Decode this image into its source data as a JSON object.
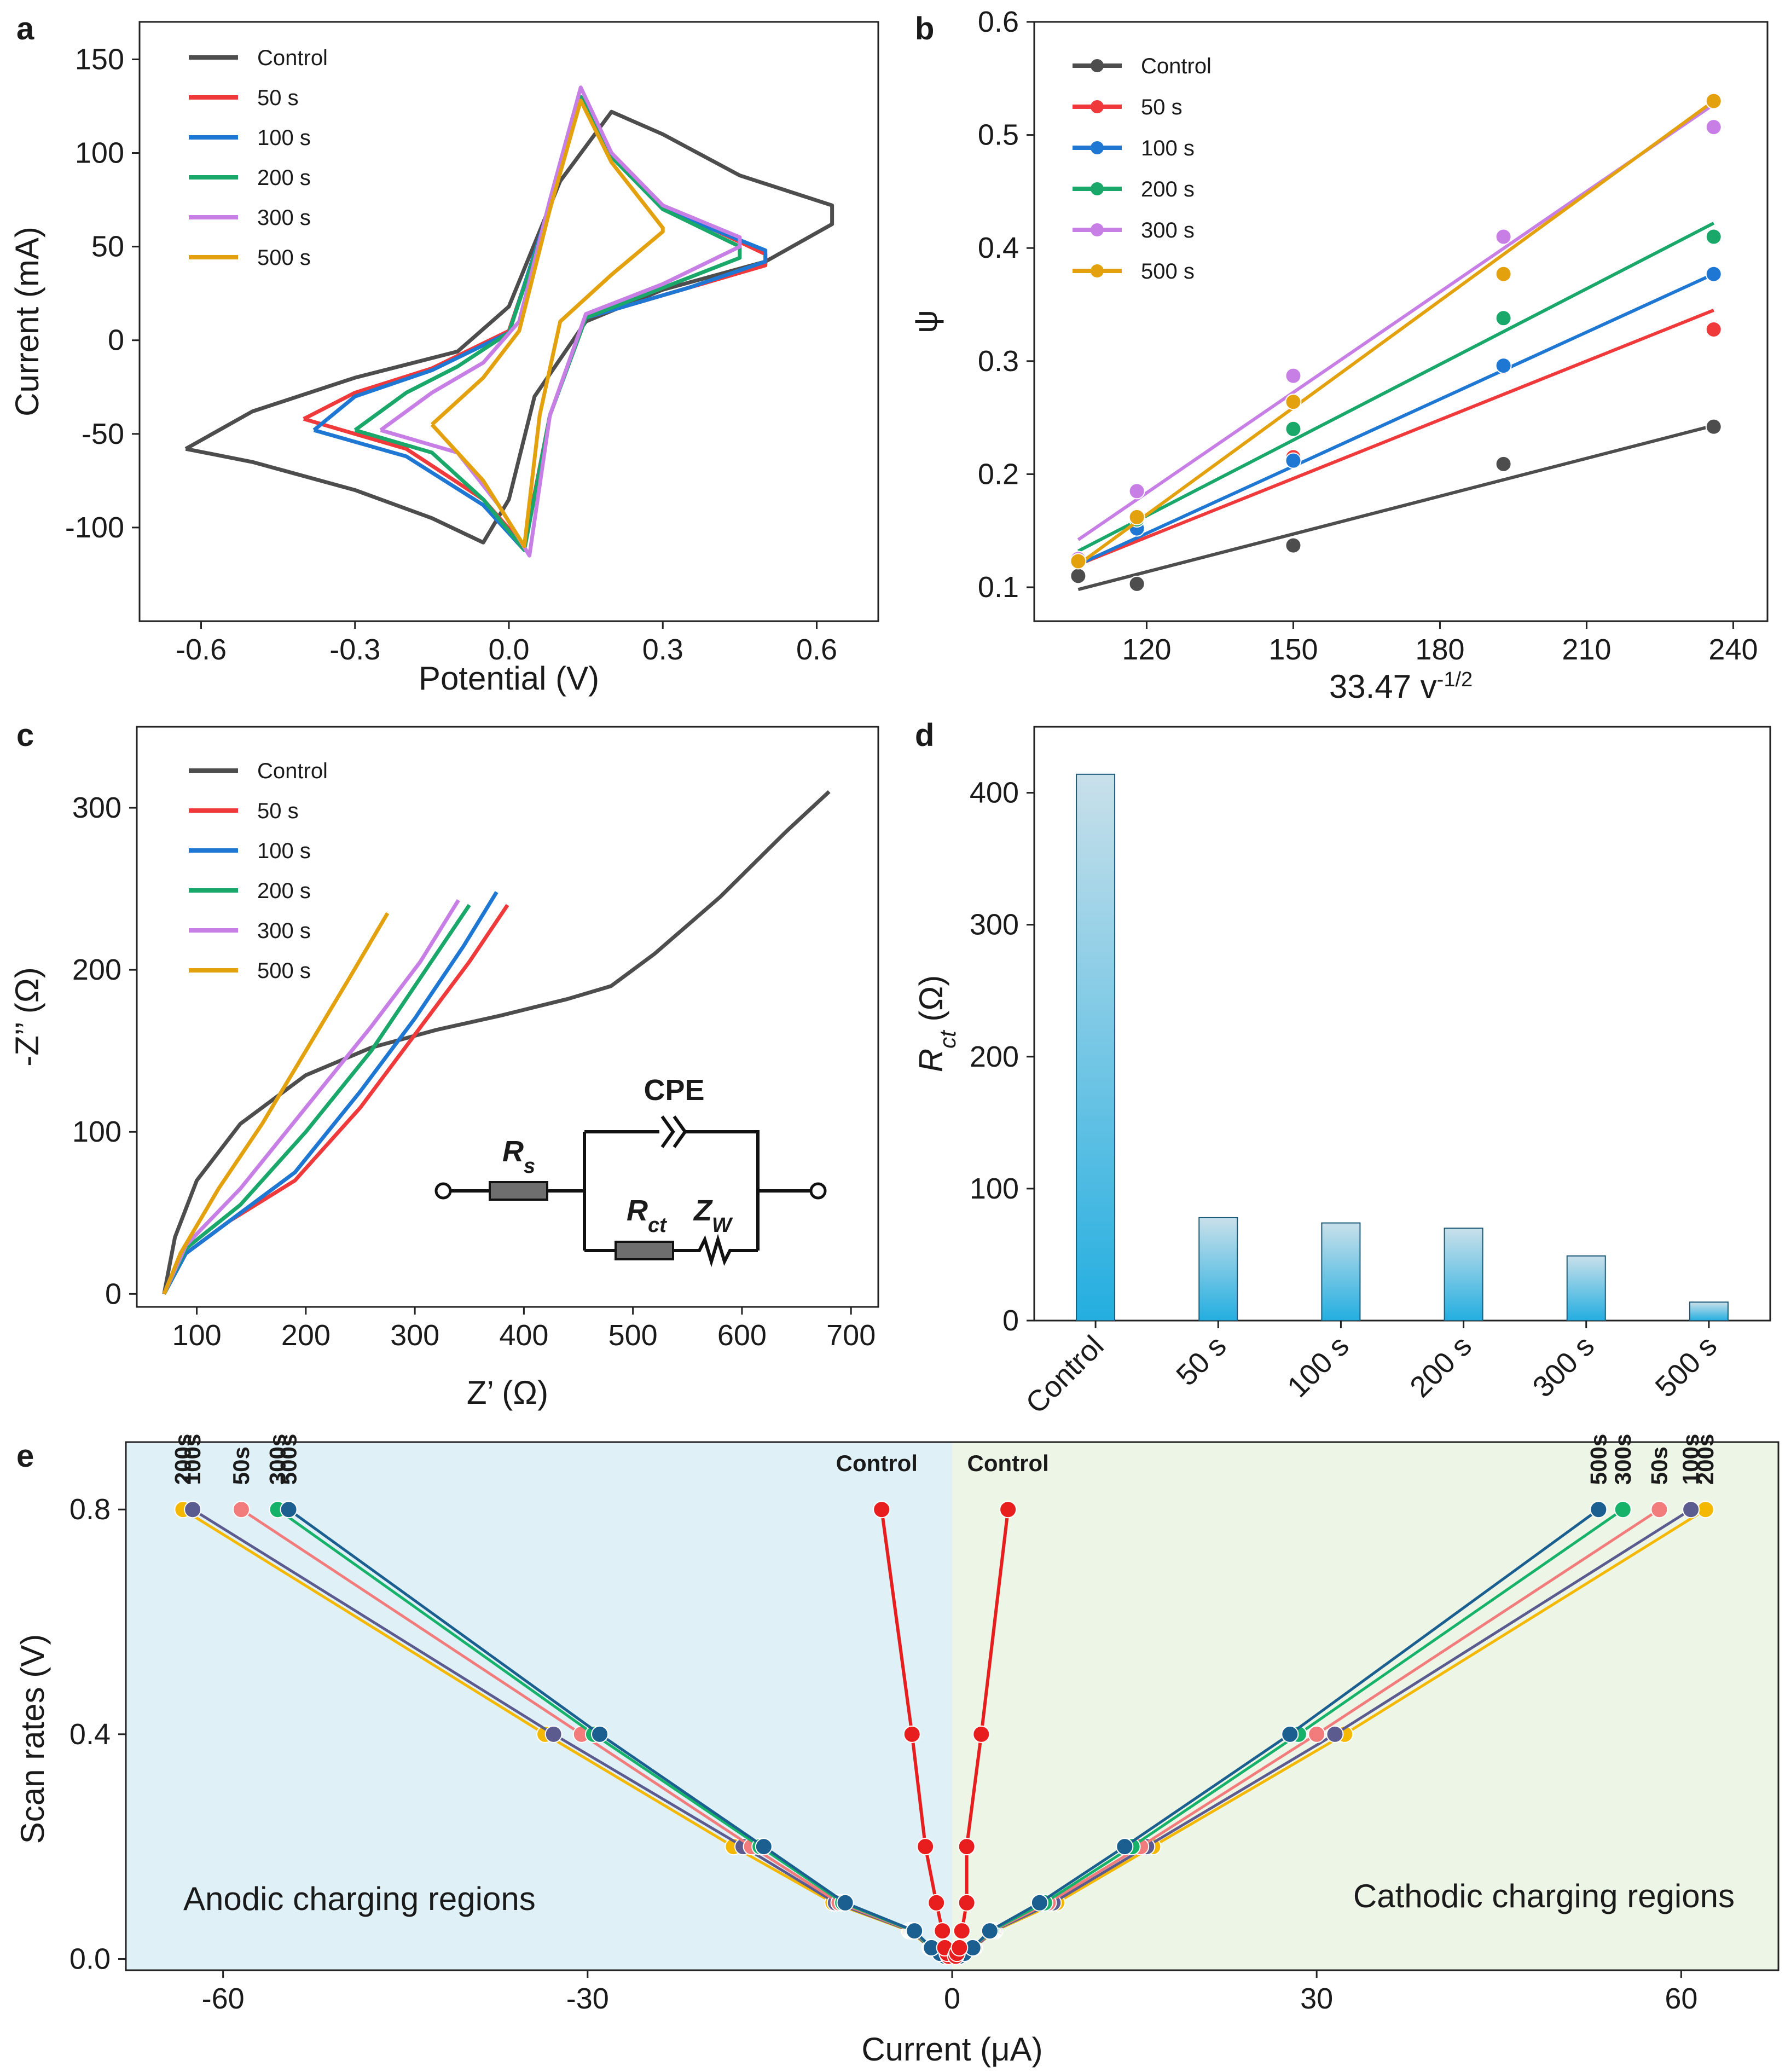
{
  "chart_data": [
    {
      "panel": "a",
      "type": "line",
      "title": "",
      "xlabel": "Potential (V)",
      "ylabel": "Current (mA)",
      "xlim": [
        -0.72,
        0.72
      ],
      "ylim": [
        -150,
        170
      ],
      "xticks": [
        "-0.6",
        "-0.3",
        "0.0",
        "0.3",
        "0.6"
      ],
      "xtick_values": [
        -0.6,
        -0.3,
        0.0,
        0.3,
        0.6
      ],
      "yticks": [
        "150",
        "100",
        "50",
        "0",
        "-50",
        "-100"
      ],
      "ytick_values": [
        150,
        100,
        50,
        0,
        -50,
        -100
      ],
      "legend": [
        "Control",
        "50 s",
        "100 s",
        "200 s",
        "300 s",
        "500 s"
      ],
      "colors": [
        "#4d4d4d",
        "#f0393b",
        "#1f77d4",
        "#1aa86a",
        "#c77fe6",
        "#e3a20d"
      ],
      "series": [
        {
          "name": "Control",
          "points": [
            [
              -0.63,
              -58
            ],
            [
              -0.5,
              -38
            ],
            [
              -0.3,
              -20
            ],
            [
              -0.1,
              -6
            ],
            [
              0.0,
              18
            ],
            [
              0.1,
              85
            ],
            [
              0.2,
              122
            ],
            [
              0.3,
              110
            ],
            [
              0.45,
              88
            ],
            [
              0.63,
              72
            ],
            [
              0.63,
              62
            ],
            [
              0.5,
              42
            ],
            [
              0.3,
              27
            ],
            [
              0.15,
              10
            ],
            [
              0.05,
              -30
            ],
            [
              0.0,
              -85
            ],
            [
              -0.05,
              -108
            ],
            [
              -0.15,
              -95
            ],
            [
              -0.3,
              -80
            ],
            [
              -0.5,
              -65
            ],
            [
              -0.63,
              -58
            ]
          ]
        },
        {
          "name": "50 s",
          "points": [
            [
              -0.4,
              -42
            ],
            [
              -0.3,
              -28
            ],
            [
              -0.15,
              -15
            ],
            [
              0.0,
              5
            ],
            [
              0.08,
              70
            ],
            [
              0.14,
              130
            ],
            [
              0.2,
              100
            ],
            [
              0.3,
              72
            ],
            [
              0.5,
              46
            ],
            [
              0.5,
              40
            ],
            [
              0.35,
              28
            ],
            [
              0.15,
              12
            ],
            [
              0.08,
              -40
            ],
            [
              0.03,
              -110
            ],
            [
              -0.05,
              -85
            ],
            [
              -0.2,
              -58
            ],
            [
              -0.4,
              -42
            ]
          ]
        },
        {
          "name": "100 s",
          "points": [
            [
              -0.38,
              -48
            ],
            [
              -0.3,
              -30
            ],
            [
              -0.15,
              -16
            ],
            [
              0.0,
              4
            ],
            [
              0.08,
              72
            ],
            [
              0.14,
              128
            ],
            [
              0.2,
              98
            ],
            [
              0.3,
              70
            ],
            [
              0.5,
              48
            ],
            [
              0.5,
              42
            ],
            [
              0.35,
              28
            ],
            [
              0.15,
              12
            ],
            [
              0.08,
              -40
            ],
            [
              0.03,
              -112
            ],
            [
              -0.05,
              -88
            ],
            [
              -0.2,
              -62
            ],
            [
              -0.38,
              -48
            ]
          ]
        },
        {
          "name": "200 s",
          "points": [
            [
              -0.3,
              -48
            ],
            [
              -0.2,
              -28
            ],
            [
              -0.1,
              -14
            ],
            [
              0.0,
              4
            ],
            [
              0.08,
              70
            ],
            [
              0.14,
              130
            ],
            [
              0.2,
              98
            ],
            [
              0.3,
              70
            ],
            [
              0.45,
              50
            ],
            [
              0.45,
              44
            ],
            [
              0.3,
              28
            ],
            [
              0.15,
              12
            ],
            [
              0.08,
              -40
            ],
            [
              0.03,
              -112
            ],
            [
              -0.05,
              -85
            ],
            [
              -0.15,
              -60
            ],
            [
              -0.3,
              -48
            ]
          ]
        },
        {
          "name": "300 s",
          "points": [
            [
              -0.25,
              -48
            ],
            [
              -0.15,
              -28
            ],
            [
              -0.05,
              -12
            ],
            [
              0.02,
              10
            ],
            [
              0.08,
              75
            ],
            [
              0.14,
              135
            ],
            [
              0.2,
              100
            ],
            [
              0.3,
              72
            ],
            [
              0.45,
              55
            ],
            [
              0.45,
              50
            ],
            [
              0.3,
              30
            ],
            [
              0.15,
              14
            ],
            [
              0.08,
              -40
            ],
            [
              0.04,
              -115
            ],
            [
              -0.02,
              -88
            ],
            [
              -0.1,
              -60
            ],
            [
              -0.25,
              -48
            ]
          ]
        },
        {
          "name": "500 s",
          "points": [
            [
              -0.15,
              -45
            ],
            [
              -0.05,
              -20
            ],
            [
              0.02,
              5
            ],
            [
              0.08,
              70
            ],
            [
              0.14,
              128
            ],
            [
              0.2,
              95
            ],
            [
              0.3,
              60
            ],
            [
              0.3,
              58
            ],
            [
              0.2,
              35
            ],
            [
              0.1,
              10
            ],
            [
              0.06,
              -40
            ],
            [
              0.03,
              -110
            ],
            [
              -0.05,
              -75
            ],
            [
              -0.15,
              -45
            ]
          ]
        }
      ]
    },
    {
      "panel": "b",
      "type": "scatter",
      "title": "",
      "xlabel": "33.47 v",
      "xlabel_sup": "-1/2",
      "ylabel": "ψ",
      "xlim": [
        97,
        247
      ],
      "ylim": [
        0.07,
        0.6
      ],
      "xticks": [
        "120",
        "150",
        "180",
        "210",
        "240"
      ],
      "xtick_values": [
        120,
        150,
        180,
        210,
        240
      ],
      "yticks": [
        "0.6",
        "0.5",
        "0.4",
        "0.3",
        "0.2",
        "0.1"
      ],
      "ytick_values": [
        0.6,
        0.5,
        0.4,
        0.3,
        0.2,
        0.1
      ],
      "x": [
        106,
        118,
        150,
        193,
        236
      ],
      "legend": [
        "Control",
        "50 s",
        "100 s",
        "200 s",
        "300 s",
        "500 s"
      ],
      "series": [
        {
          "name": "Control",
          "values": [
            0.11,
            0.103,
            0.137,
            0.209,
            0.242
          ],
          "fit": [
            0.098,
            0.243
          ]
        },
        {
          "name": "50 s",
          "values": [
            0.125,
            0.152,
            0.215,
            0.295,
            0.328
          ],
          "fit": [
            0.12,
            0.345
          ]
        },
        {
          "name": "100 s",
          "values": [
            0.125,
            0.152,
            0.212,
            0.296,
            0.377
          ],
          "fit": [
            0.12,
            0.377
          ]
        },
        {
          "name": "200 s",
          "values": [
            0.125,
            0.16,
            0.24,
            0.338,
            0.41
          ],
          "fit": [
            0.132,
            0.422
          ]
        },
        {
          "name": "300 s",
          "values": [
            0.125,
            0.185,
            0.287,
            0.41,
            0.507
          ],
          "fit": [
            0.142,
            0.527
          ]
        },
        {
          "name": "500 s",
          "values": [
            0.123,
            0.162,
            0.264,
            0.377,
            0.53
          ],
          "fit": [
            0.12,
            0.53
          ]
        }
      ]
    },
    {
      "panel": "c",
      "type": "line",
      "title": "",
      "xlabel": "Z’ (Ω)",
      "ylabel": "-Z’’ (Ω)",
      "xlim": [
        45,
        725
      ],
      "ylim": [
        -8,
        350
      ],
      "xticks": [
        "100",
        "200",
        "300",
        "400",
        "500",
        "600",
        "700"
      ],
      "xtick_values": [
        100,
        200,
        300,
        400,
        500,
        600,
        700
      ],
      "yticks": [
        "300",
        "200",
        "100",
        "0"
      ],
      "ytick_values": [
        300,
        200,
        100,
        0
      ],
      "legend": [
        "Control",
        "50 s",
        "100 s",
        "200 s",
        "300 s",
        "500 s"
      ],
      "circuit_labels": {
        "cpe": "CPE",
        "rs": "R",
        "rs_sub": "s",
        "rct": "R",
        "rct_sub": "ct",
        "zw": "Z",
        "zw_sub": "W"
      },
      "series": [
        {
          "name": "Control",
          "points": [
            [
              70,
              0
            ],
            [
              80,
              35
            ],
            [
              100,
              70
            ],
            [
              140,
              105
            ],
            [
              200,
              135
            ],
            [
              260,
              152
            ],
            [
              320,
              163
            ],
            [
              380,
              172
            ],
            [
              440,
              182
            ],
            [
              480,
              190
            ],
            [
              520,
              210
            ],
            [
              580,
              245
            ],
            [
              640,
              285
            ],
            [
              680,
              310
            ]
          ]
        },
        {
          "name": "50 s",
          "points": [
            [
              70,
              0
            ],
            [
              90,
              25
            ],
            [
              130,
              45
            ],
            [
              190,
              70
            ],
            [
              250,
              115
            ],
            [
              300,
              160
            ],
            [
              350,
              205
            ],
            [
              385,
              240
            ]
          ]
        },
        {
          "name": "100 s",
          "points": [
            [
              70,
              0
            ],
            [
              90,
              25
            ],
            [
              130,
              45
            ],
            [
              190,
              75
            ],
            [
              250,
              125
            ],
            [
              300,
              170
            ],
            [
              345,
              215
            ],
            [
              375,
              248
            ]
          ]
        },
        {
          "name": "200 s",
          "points": [
            [
              70,
              0
            ],
            [
              90,
              28
            ],
            [
              140,
              55
            ],
            [
              200,
              100
            ],
            [
              260,
              150
            ],
            [
              310,
              200
            ],
            [
              350,
              240
            ]
          ]
        },
        {
          "name": "300 s",
          "points": [
            [
              70,
              0
            ],
            [
              90,
              30
            ],
            [
              140,
              65
            ],
            [
              200,
              115
            ],
            [
              260,
              165
            ],
            [
              305,
              205
            ],
            [
              340,
              243
            ]
          ]
        },
        {
          "name": "500 s",
          "points": [
            [
              70,
              0
            ],
            [
              85,
              25
            ],
            [
              120,
              65
            ],
            [
              160,
              105
            ],
            [
              200,
              150
            ],
            [
              240,
              195
            ],
            [
              275,
              235
            ]
          ]
        }
      ]
    },
    {
      "panel": "d",
      "type": "bar",
      "title": "",
      "xlabel": "",
      "ylabel": "R",
      "ylabel_sub": "ct",
      "ylabel_unit": " (Ω)",
      "ylim": [
        0,
        450
      ],
      "yticks": [
        "400",
        "300",
        "200",
        "100",
        "0"
      ],
      "ytick_values": [
        400,
        300,
        200,
        100,
        0
      ],
      "categories": [
        "Control",
        "50 s",
        "100 s",
        "200 s",
        "300 s",
        "500 s"
      ],
      "values": [
        414,
        78,
        74,
        70,
        49,
        14
      ]
    },
    {
      "panel": "e",
      "type": "line",
      "title": "",
      "xlabel": "Current (μA)",
      "ylabel": "Scan rates (V)",
      "xlim": [
        -68,
        68
      ],
      "ylim": [
        -0.02,
        0.92
      ],
      "xticks": [
        "-60",
        "-30",
        "0",
        "30",
        "60"
      ],
      "xtick_values": [
        -60,
        -30,
        0,
        30,
        60
      ],
      "yticks": [
        "0.8",
        "0.4",
        "0.0"
      ],
      "ytick_values": [
        0.8,
        0.4,
        0.0
      ],
      "region_labels": [
        "Anodic charging regions",
        "Cathodic charging regions"
      ],
      "control_labels": [
        "Control",
        "Control"
      ],
      "scan_rates": [
        0.005,
        0.01,
        0.02,
        0.05,
        0.1,
        0.2,
        0.4,
        0.8
      ],
      "series": [
        {
          "name": "200s",
          "color": "#f5b800",
          "anodic": [
            -0.6,
            -1.0,
            -1.8,
            -3.5,
            -9.8,
            -18,
            -33.5,
            -63.3
          ],
          "cathodic": [
            0.6,
            1.0,
            1.8,
            3.5,
            8.6,
            16.5,
            32.3,
            62.0
          ]
        },
        {
          "name": "100s",
          "color": "#5b5b8f",
          "anodic": [
            -0.6,
            -1.0,
            -1.8,
            -3.4,
            -9.6,
            -17.2,
            -32.8,
            -62.5
          ],
          "cathodic": [
            0.6,
            1.0,
            1.8,
            3.4,
            8.3,
            16.0,
            31.5,
            60.8
          ]
        },
        {
          "name": "50s",
          "color": "#f27b7b",
          "anodic": [
            -0.6,
            -1.0,
            -1.7,
            -3.3,
            -9.3,
            -16.5,
            -30.5,
            -58.5
          ],
          "cathodic": [
            0.6,
            1.0,
            1.7,
            3.3,
            7.9,
            15.5,
            30.0,
            58.2
          ]
        },
        {
          "name": "300s",
          "color": "#17b26a",
          "anodic": [
            -0.6,
            -1.0,
            -1.7,
            -3.2,
            -9.0,
            -15.8,
            -29.5,
            -55.5
          ],
          "cathodic": [
            0.6,
            1.0,
            1.7,
            3.2,
            7.6,
            14.8,
            28.5,
            55.2
          ]
        },
        {
          "name": "500s",
          "color": "#1a5f8f",
          "anodic": [
            -0.6,
            -1.0,
            -1.7,
            -3.1,
            -8.8,
            -15.5,
            -29.0,
            -54.6
          ],
          "cathodic": [
            0.6,
            1.0,
            1.7,
            3.1,
            7.2,
            14.2,
            27.8,
            53.2
          ]
        },
        {
          "name": "Control",
          "color": "#e81e1e",
          "anodic": [
            -0.3,
            -0.4,
            -0.6,
            -0.8,
            -1.3,
            -2.2,
            -3.3,
            -5.8
          ],
          "cathodic": [
            0.3,
            0.4,
            0.6,
            0.8,
            1.2,
            1.2,
            2.4,
            4.6
          ]
        }
      ]
    }
  ]
}
